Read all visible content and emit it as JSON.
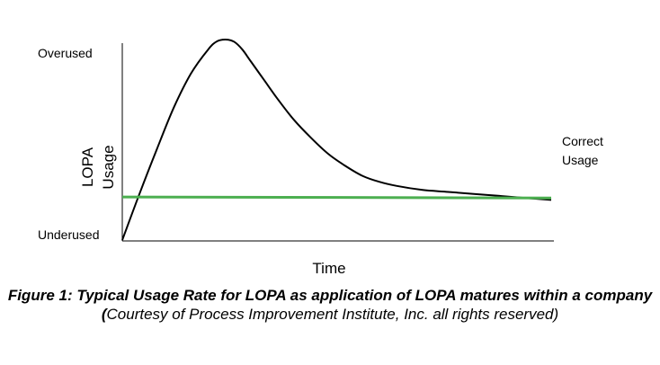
{
  "chart_data": {
    "type": "line",
    "xlabel": "Time",
    "ylabel": "LOPA Usage",
    "ylabel_lines": [
      "LOPA",
      "Usage"
    ],
    "ytick_labels": {
      "top": "Overused",
      "bottom": "Underused"
    },
    "x_range": [
      0,
      100
    ],
    "y_range": [
      0,
      100
    ],
    "grid": false,
    "series": [
      {
        "key": "usage",
        "color": "#000000",
        "x": [
          0,
          4,
          8,
          12,
          16,
          20,
          22,
          24,
          26,
          28,
          30,
          33,
          36,
          40,
          44,
          48,
          52,
          56,
          60,
          64,
          70,
          76,
          82,
          88,
          94,
          100
        ],
        "y": [
          0,
          23,
          45,
          66,
          83,
          95,
          99,
          100,
          99,
          95,
          89,
          80,
          71,
          60,
          51,
          43,
          37,
          32,
          29,
          27,
          25,
          24,
          23,
          22,
          21,
          20
        ]
      },
      {
        "key": "correct",
        "color": "#4caf50",
        "x": [
          0,
          100
        ],
        "y": [
          21.5,
          21
        ]
      }
    ],
    "annotations": [
      {
        "target": "correct",
        "lines": [
          "Correct",
          "Usage"
        ]
      }
    ]
  },
  "caption": {
    "bold_part": "Figure 1:  Typical Usage Rate for LOPA as application of LOPA matures within a company (",
    "italic_part": "Courtesy of Process Improvement Institute, Inc. all rights reserved)"
  }
}
